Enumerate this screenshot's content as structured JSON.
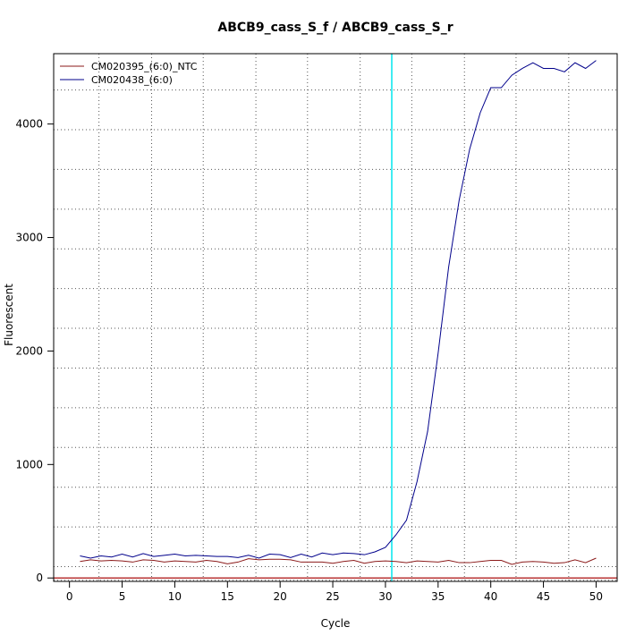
{
  "chart_data": {
    "type": "line",
    "title": "ABCB9_cass_S_f / ABCB9_cass_S_r",
    "xlabel": "Cycle",
    "ylabel": "Fluorescent",
    "xlim": [
      -1.5,
      52
    ],
    "ylim": [
      -30,
      4620
    ],
    "x_ticks": [
      0,
      5,
      10,
      15,
      20,
      25,
      30,
      35,
      40,
      45,
      50
    ],
    "y_ticks": [
      0,
      1000,
      2000,
      3000,
      4000
    ],
    "grid": true,
    "grid_x": [
      2.8,
      7.8,
      12.7,
      17.7,
      22.6,
      27.6,
      32.5,
      37.5,
      42.4,
      47.4
    ],
    "grid_y": [
      -20,
      100,
      450,
      800,
      1150,
      1500,
      1850,
      2200,
      2550,
      2900,
      3250,
      3600,
      3950,
      4300
    ],
    "legend_position": "top-left",
    "baseline": {
      "y": 0,
      "color": "#b22222"
    },
    "threshold": {
      "x": 30.6,
      "color": "#00e5ee"
    },
    "x": [
      1,
      2,
      3,
      4,
      5,
      6,
      7,
      8,
      9,
      10,
      11,
      12,
      13,
      14,
      15,
      16,
      17,
      18,
      19,
      20,
      21,
      22,
      23,
      24,
      25,
      26,
      27,
      28,
      29,
      30,
      31,
      32,
      33,
      34,
      35,
      36,
      37,
      38,
      39,
      40,
      41,
      42,
      43,
      44,
      45,
      46,
      47,
      48,
      49,
      50
    ],
    "series": [
      {
        "name": "CM020395_(6:0)_NTC",
        "color": "#8b1a1a",
        "values": [
          145,
          160,
          150,
          155,
          150,
          140,
          160,
          155,
          140,
          150,
          145,
          140,
          155,
          145,
          125,
          140,
          170,
          160,
          165,
          165,
          160,
          140,
          140,
          140,
          130,
          145,
          155,
          130,
          145,
          150,
          145,
          135,
          150,
          145,
          140,
          155,
          135,
          135,
          145,
          155,
          155,
          120,
          140,
          145,
          140,
          130,
          135,
          160,
          135,
          175
        ]
      },
      {
        "name": "CM020438_(6:0)",
        "color": "#00008b",
        "values": [
          195,
          175,
          195,
          185,
          210,
          185,
          215,
          190,
          200,
          210,
          195,
          200,
          195,
          190,
          190,
          180,
          200,
          175,
          210,
          205,
          180,
          210,
          185,
          220,
          205,
          220,
          215,
          205,
          230,
          270,
          380,
          510,
          850,
          1290,
          1980,
          2740,
          3330,
          3780,
          4100,
          4320,
          4320,
          4430,
          4490,
          4540,
          4490,
          4490,
          4460,
          4540,
          4490,
          4560
        ]
      }
    ]
  }
}
